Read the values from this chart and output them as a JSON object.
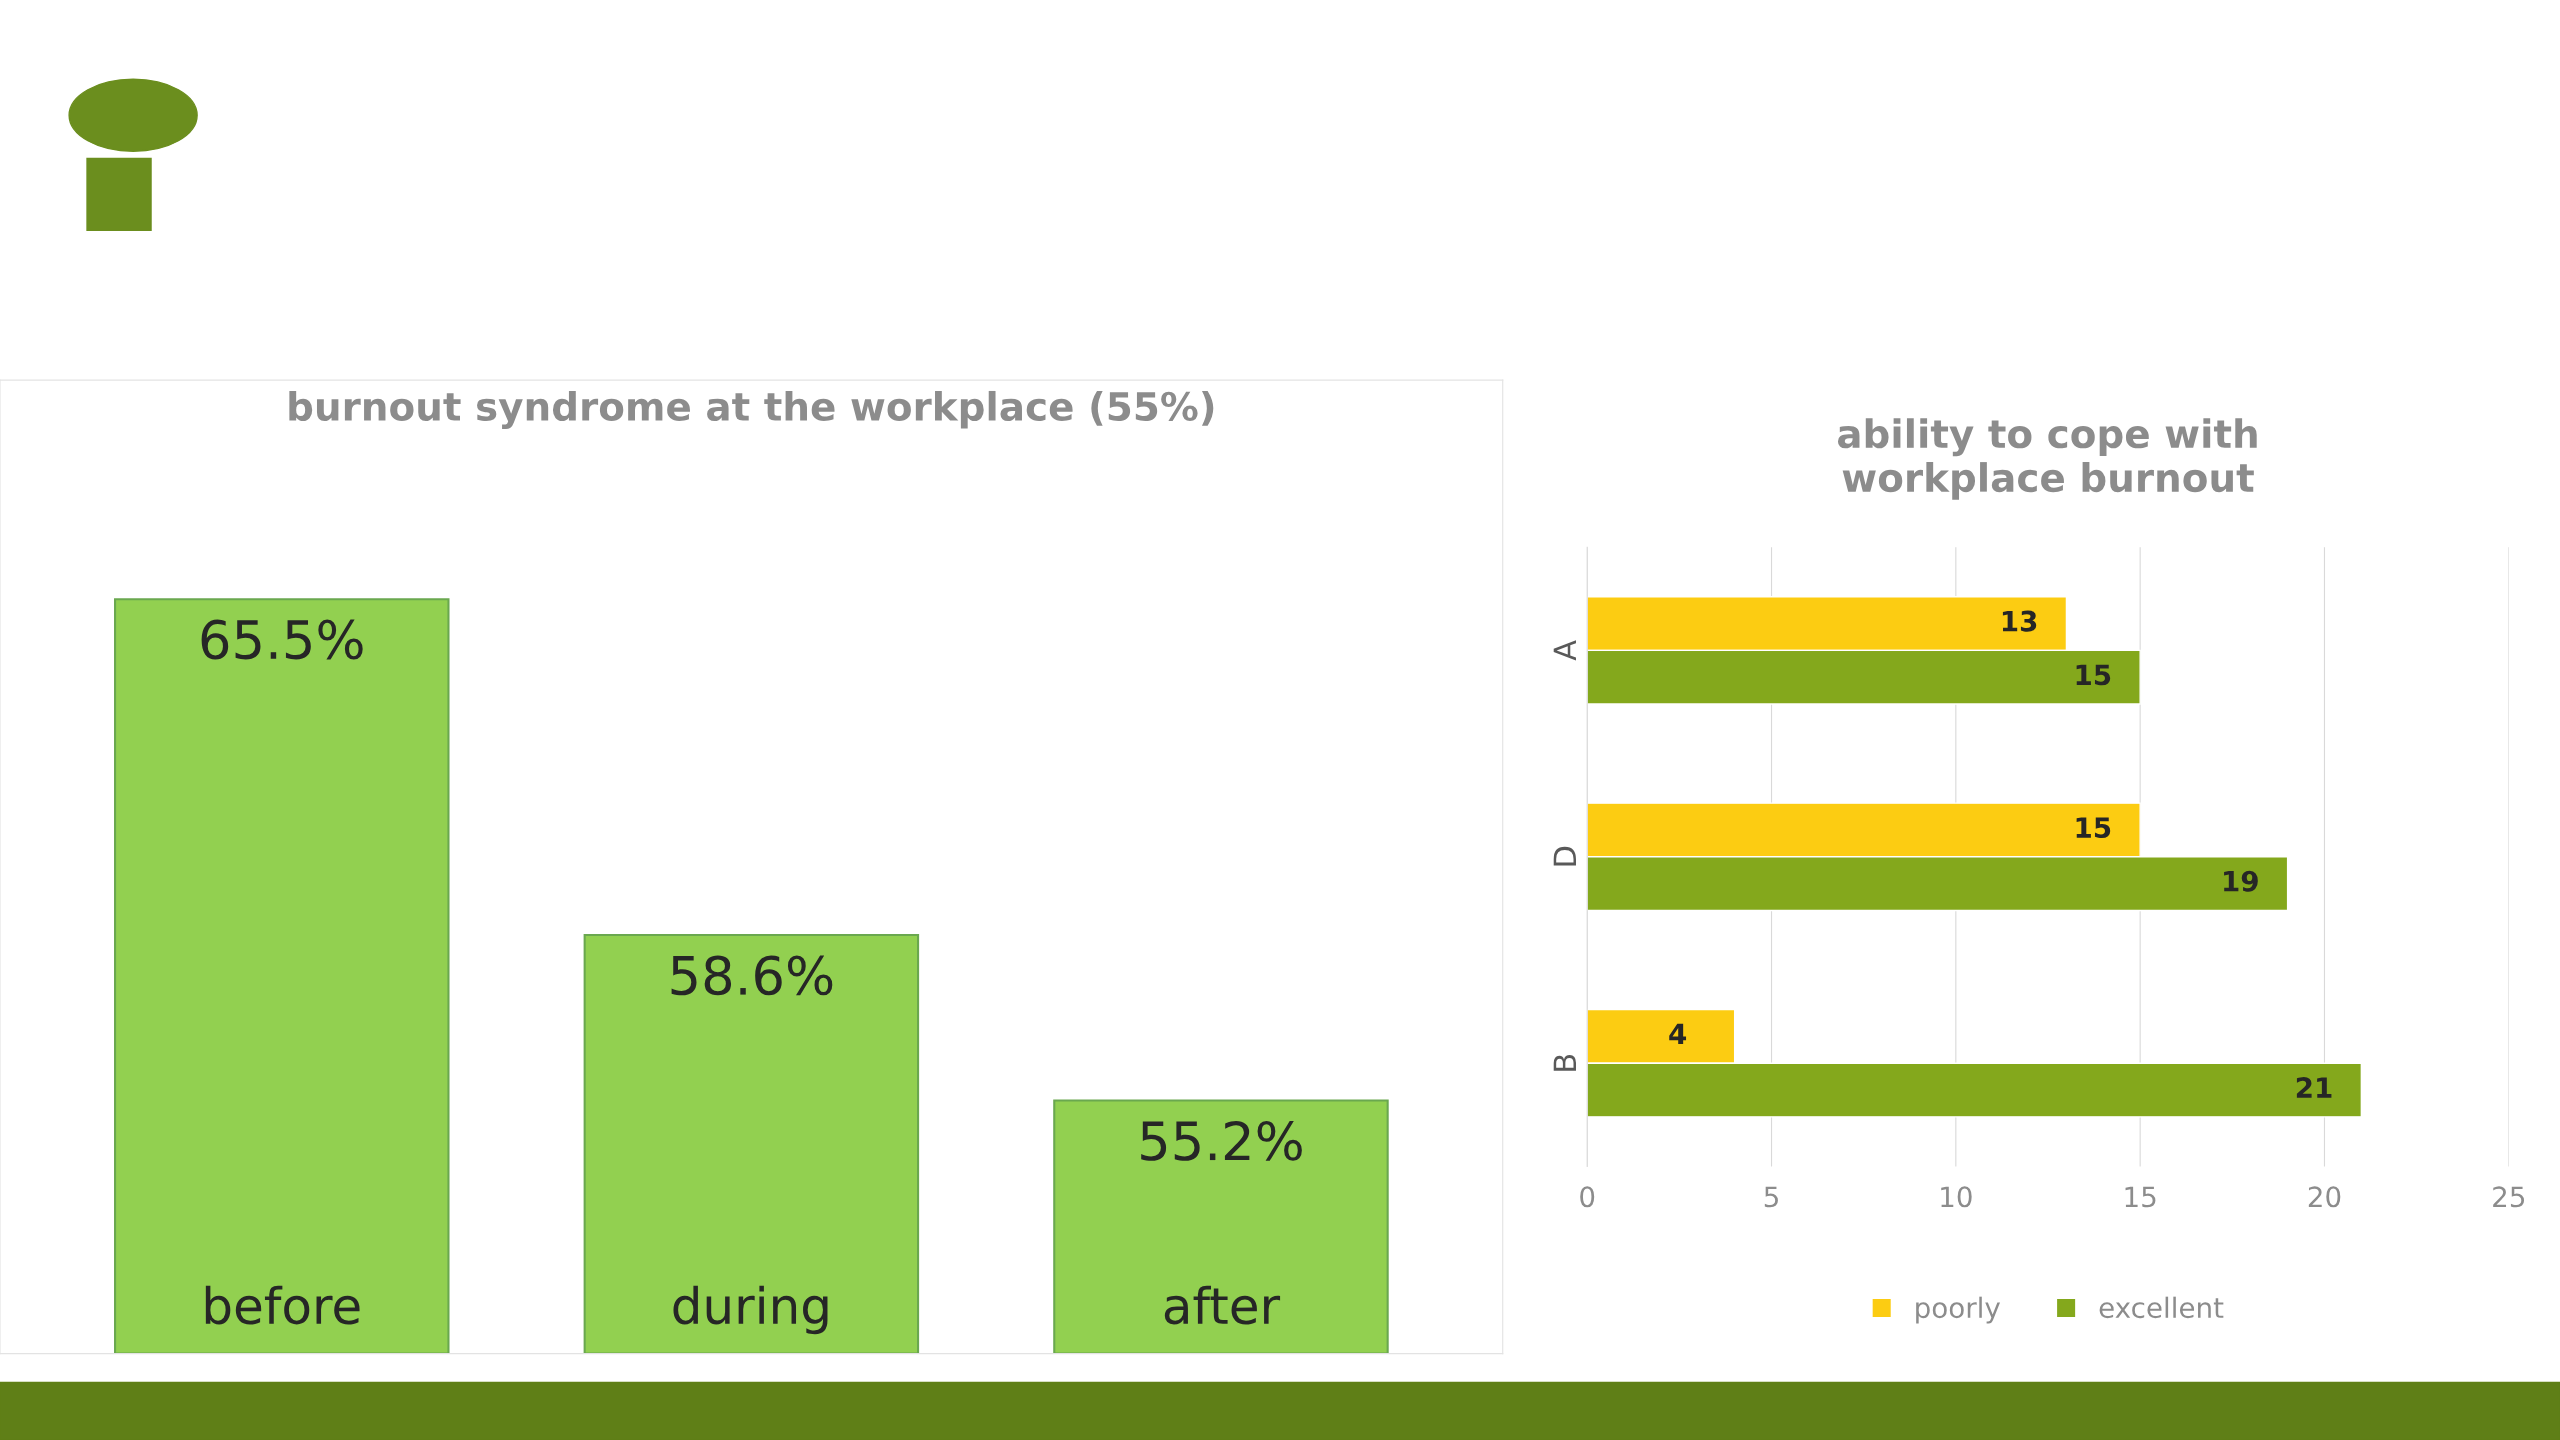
{
  "chart_data": [
    {
      "type": "bar",
      "title": "burnout syndrome at the workplace (55%)",
      "categories": [
        "before",
        "during",
        "after"
      ],
      "values": [
        65.5,
        58.6,
        55.2
      ],
      "value_labels": [
        "65.5%",
        "58.6%",
        "55.2%"
      ],
      "color": "#92d050",
      "ylim": [
        50,
        70
      ],
      "tick_labels": false,
      "grid": false,
      "legend": false
    },
    {
      "type": "bar",
      "orientation": "horizontal",
      "title": "ability to cope with\nworkplace burnout",
      "categories": [
        "A",
        "D",
        "B"
      ],
      "series": [
        {
          "name": "poorly",
          "color": "#fccc12",
          "values": [
            13,
            15,
            4
          ]
        },
        {
          "name": "excellent",
          "color": "#84a81c",
          "values": [
            15,
            19,
            21
          ]
        }
      ],
      "xlim": [
        0,
        25
      ],
      "xticks": [
        0,
        5,
        10,
        15,
        20,
        25
      ],
      "grid": "x",
      "legend": "bottom",
      "data_labels": true
    }
  ]
}
